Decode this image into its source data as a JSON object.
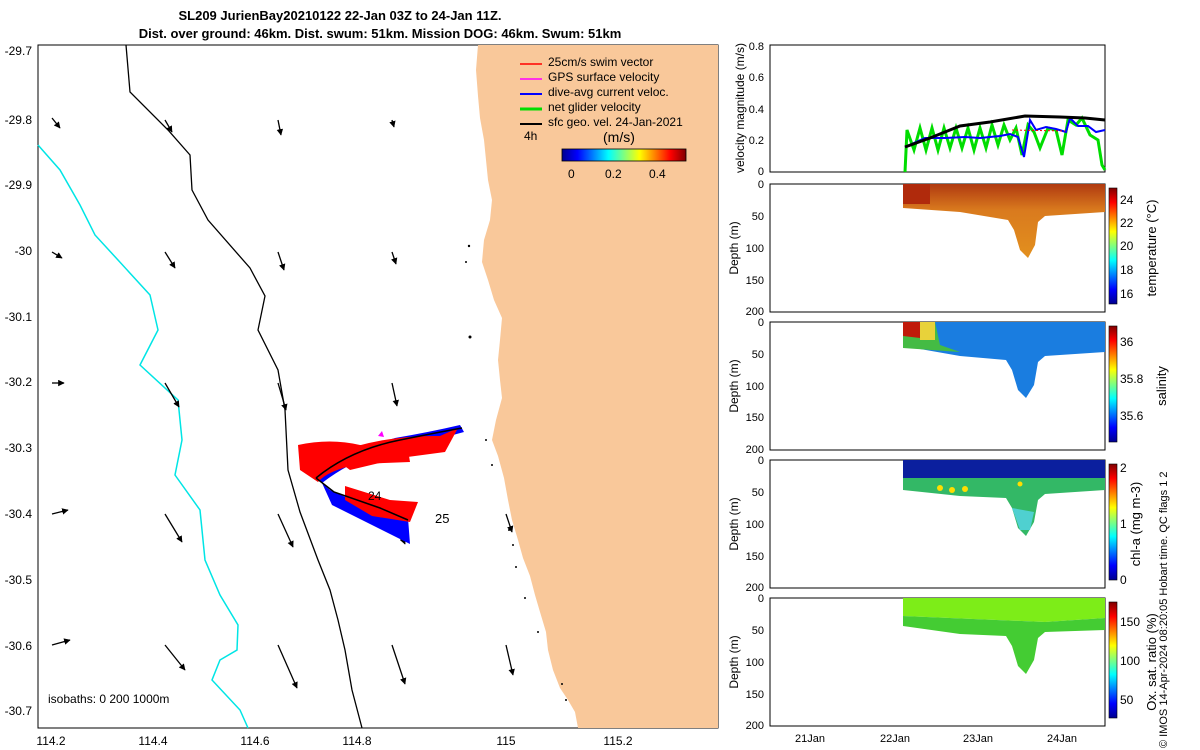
{
  "title": {
    "line1": "SL209 JurienBay20210122 22-Jan 03Z to 24-Jan 11Z.",
    "line2": "Dist. over ground: 46km. Dist. swum: 51km. Mission DOG: 46km. Swum: 51km"
  },
  "map": {
    "lon_ticks": [
      "114.2",
      "114.4",
      "114.6",
      "114.8",
      "115",
      "115.2"
    ],
    "lat_ticks": [
      "-29.7",
      "-29.8",
      "-29.9",
      "-30",
      "-30.1",
      "-30.2",
      "-30.3",
      "-30.4",
      "-30.5",
      "-30.6",
      "-30.7"
    ],
    "legend": {
      "items": [
        {
          "label": "25cm/s swim vector",
          "color": "#ff0000"
        },
        {
          "label": "GPS surface velocity",
          "color": "#ff00ff"
        },
        {
          "label": "dive-avg current veloc.",
          "color": "#0000ff"
        },
        {
          "label": "net glider velocity",
          "color": "#00dd00"
        },
        {
          "label": "sfc geo. vel. 24-Jan-2021",
          "color": "#000000"
        }
      ],
      "interval": "4h"
    },
    "colorbar": {
      "label": "(m/s)",
      "ticks": [
        "0",
        "0.2",
        "0.4"
      ]
    },
    "isobaths_label": "isobaths: 0   200  1000m",
    "track_labels": [
      "24",
      "25"
    ],
    "land_color": "#f9c89a",
    "coast_color": "#00e5e5"
  },
  "panels": {
    "velocity": {
      "ylabel": "velocity magnitude (m/s)",
      "yticks": [
        "0",
        "0.2",
        "0.4",
        "0.6",
        "0.8"
      ]
    },
    "temperature": {
      "ylabel": "Depth (m)",
      "yticks": [
        "0",
        "50",
        "100",
        "150",
        "200"
      ],
      "cbar_label": "temperature (°C)",
      "cbar_ticks": [
        "24",
        "22",
        "20",
        "18",
        "16"
      ]
    },
    "salinity": {
      "ylabel": "Depth (m)",
      "yticks": [
        "0",
        "50",
        "100",
        "150",
        "200"
      ],
      "cbar_label": "salinity",
      "cbar_ticks": [
        "36",
        "35.8",
        "35.6"
      ]
    },
    "chla": {
      "ylabel": "Depth (m)",
      "yticks": [
        "0",
        "50",
        "100",
        "150",
        "200"
      ],
      "cbar_label": "chl-a (mg m-3)",
      "cbar_ticks": [
        "2",
        "1",
        "0"
      ]
    },
    "oxygen": {
      "ylabel": "Depth (m)",
      "yticks": [
        "0",
        "50",
        "100",
        "150",
        "200"
      ],
      "cbar_label": "Ox. sat. ratio (%)",
      "cbar_ticks": [
        "150",
        "100",
        "50"
      ]
    },
    "xticks": [
      "21Jan",
      "22Jan",
      "23Jan",
      "24Jan"
    ]
  },
  "footer": "© IMOS 14-Apr-2024 08:20:05 Hobart time. QC flags 1  2"
}
